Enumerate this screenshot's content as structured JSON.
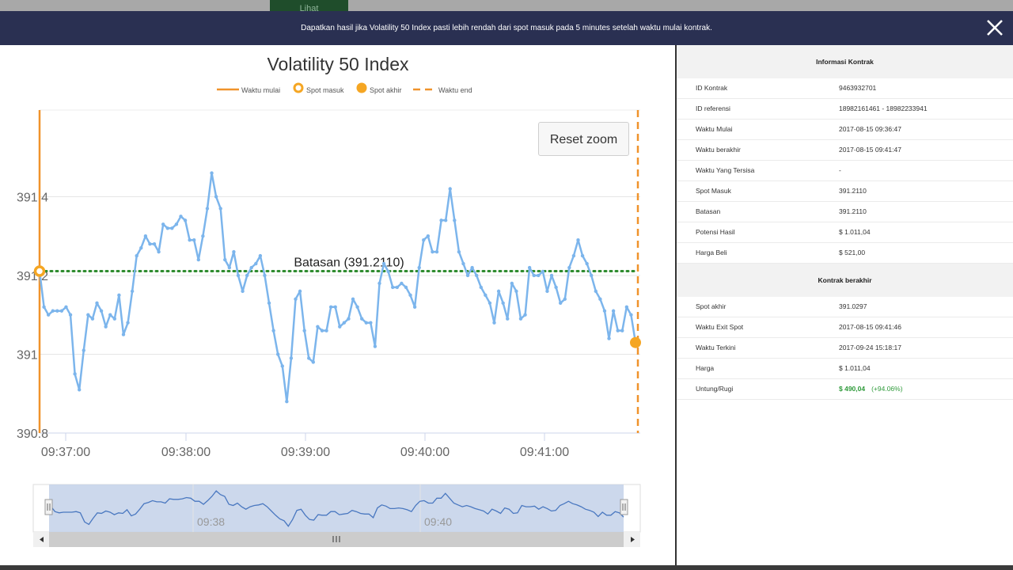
{
  "background": {
    "button_label": "Lihat"
  },
  "header": {
    "text": "Dapatkan hasil jika Volatility 50 Index pasti lebih rendah dari spot masuk pada 5 minutes setelah waktu mulai kontrak."
  },
  "chart": {
    "title": "Volatility 50 Index",
    "legend": [
      {
        "label": "Waktu mulai",
        "icon": "solid-line"
      },
      {
        "label": "Spot masuk",
        "icon": "ring"
      },
      {
        "label": "Spot akhir",
        "icon": "dot"
      },
      {
        "label": "Waktu end",
        "icon": "dashed-line"
      }
    ],
    "reset_zoom_label": "Reset zoom",
    "barrier_label": "Batasan (391.2110)",
    "y_ticks": [
      "391.4",
      "391.2",
      "391",
      "390.8"
    ],
    "x_ticks": [
      "09:37:00",
      "09:38:00",
      "09:39:00",
      "09:40:00",
      "09:41:00"
    ],
    "navigator_ticks": [
      "09:38",
      "09:40"
    ]
  },
  "chart_data": {
    "type": "line",
    "title": "Volatility 50 Index",
    "ylim": [
      390.8,
      391.62
    ],
    "barrier": 391.211,
    "y": [
      391.211,
      391.12,
      391.1,
      391.11,
      391.11,
      391.11,
      391.12,
      391.1,
      390.95,
      390.91,
      391.01,
      391.1,
      391.09,
      391.13,
      391.11,
      391.07,
      391.1,
      391.09,
      391.15,
      391.05,
      391.08,
      391.16,
      391.25,
      391.27,
      391.3,
      391.28,
      391.28,
      391.26,
      391.33,
      391.32,
      391.32,
      391.33,
      391.35,
      391.34,
      391.29,
      391.29,
      391.24,
      391.3,
      391.37,
      391.46,
      391.4,
      391.37,
      391.24,
      391.22,
      391.26,
      391.2,
      391.16,
      391.2,
      391.22,
      391.23,
      391.25,
      391.2,
      391.13,
      391.06,
      391.0,
      390.97,
      390.88,
      390.99,
      391.14,
      391.16,
      391.06,
      390.99,
      390.98,
      391.07,
      391.06,
      391.06,
      391.12,
      391.12,
      391.07,
      391.08,
      391.09,
      391.14,
      391.12,
      391.09,
      391.08,
      391.08,
      391.02,
      391.18,
      391.23,
      391.21,
      391.17,
      391.17,
      391.18,
      391.17,
      391.15,
      391.12,
      391.22,
      391.29,
      391.3,
      391.26,
      391.26,
      391.34,
      391.34,
      391.42,
      391.34,
      391.26,
      391.23,
      391.2,
      391.22,
      391.2,
      391.17,
      391.15,
      391.13,
      391.08,
      391.16,
      391.13,
      391.09,
      391.18,
      391.16,
      391.09,
      391.1,
      391.22,
      391.2,
      391.2,
      391.21,
      391.16,
      391.2,
      391.17,
      391.13,
      391.14,
      391.22,
      391.25,
      391.29,
      391.25,
      391.23,
      391.2,
      391.16,
      391.14,
      391.11,
      391.04,
      391.11,
      391.06,
      391.06,
      391.12,
      391.1,
      391.03
    ],
    "start_spot": 391.211,
    "exit_spot": 391.0297
  },
  "info": {
    "section1_title": "Informasi Kontrak",
    "rows1": [
      {
        "label": "ID Kontrak",
        "value": "9463932701"
      },
      {
        "label": "ID referensi",
        "value": "18982161461 - 18982233941"
      },
      {
        "label": "Waktu Mulai",
        "value": "2017-08-15 09:36:47"
      },
      {
        "label": "Waktu berakhir",
        "value": "2017-08-15 09:41:47"
      },
      {
        "label": "Waktu Yang Tersisa",
        "value": "-"
      },
      {
        "label": "Spot Masuk",
        "value": "391.2110"
      },
      {
        "label": "Batasan",
        "value": "391.2110"
      },
      {
        "label": "Potensi Hasil",
        "value": "$ 1.011,04"
      },
      {
        "label": "Harga Beli",
        "value": "$ 521,00"
      }
    ],
    "section2_title": "Kontrak berakhir",
    "rows2": [
      {
        "label": "Spot akhir",
        "value": "391.0297"
      },
      {
        "label": "Waktu Exit Spot",
        "value": "2017-08-15 09:41:46"
      },
      {
        "label": "Waktu Terkini",
        "value": "2017-09-24 15:18:17"
      },
      {
        "label": "Harga",
        "value": "$ 1.011,04"
      }
    ],
    "profit": {
      "label": "Untung/Rugi",
      "value": "$ 490,04",
      "percent": "(+94.06%)"
    }
  },
  "colors": {
    "header_bg": "#2a3052",
    "series": "#7cb5ec",
    "start_line": "#f0932b",
    "barrier": "#2e8b2e",
    "profit": "#2e9a3a"
  }
}
